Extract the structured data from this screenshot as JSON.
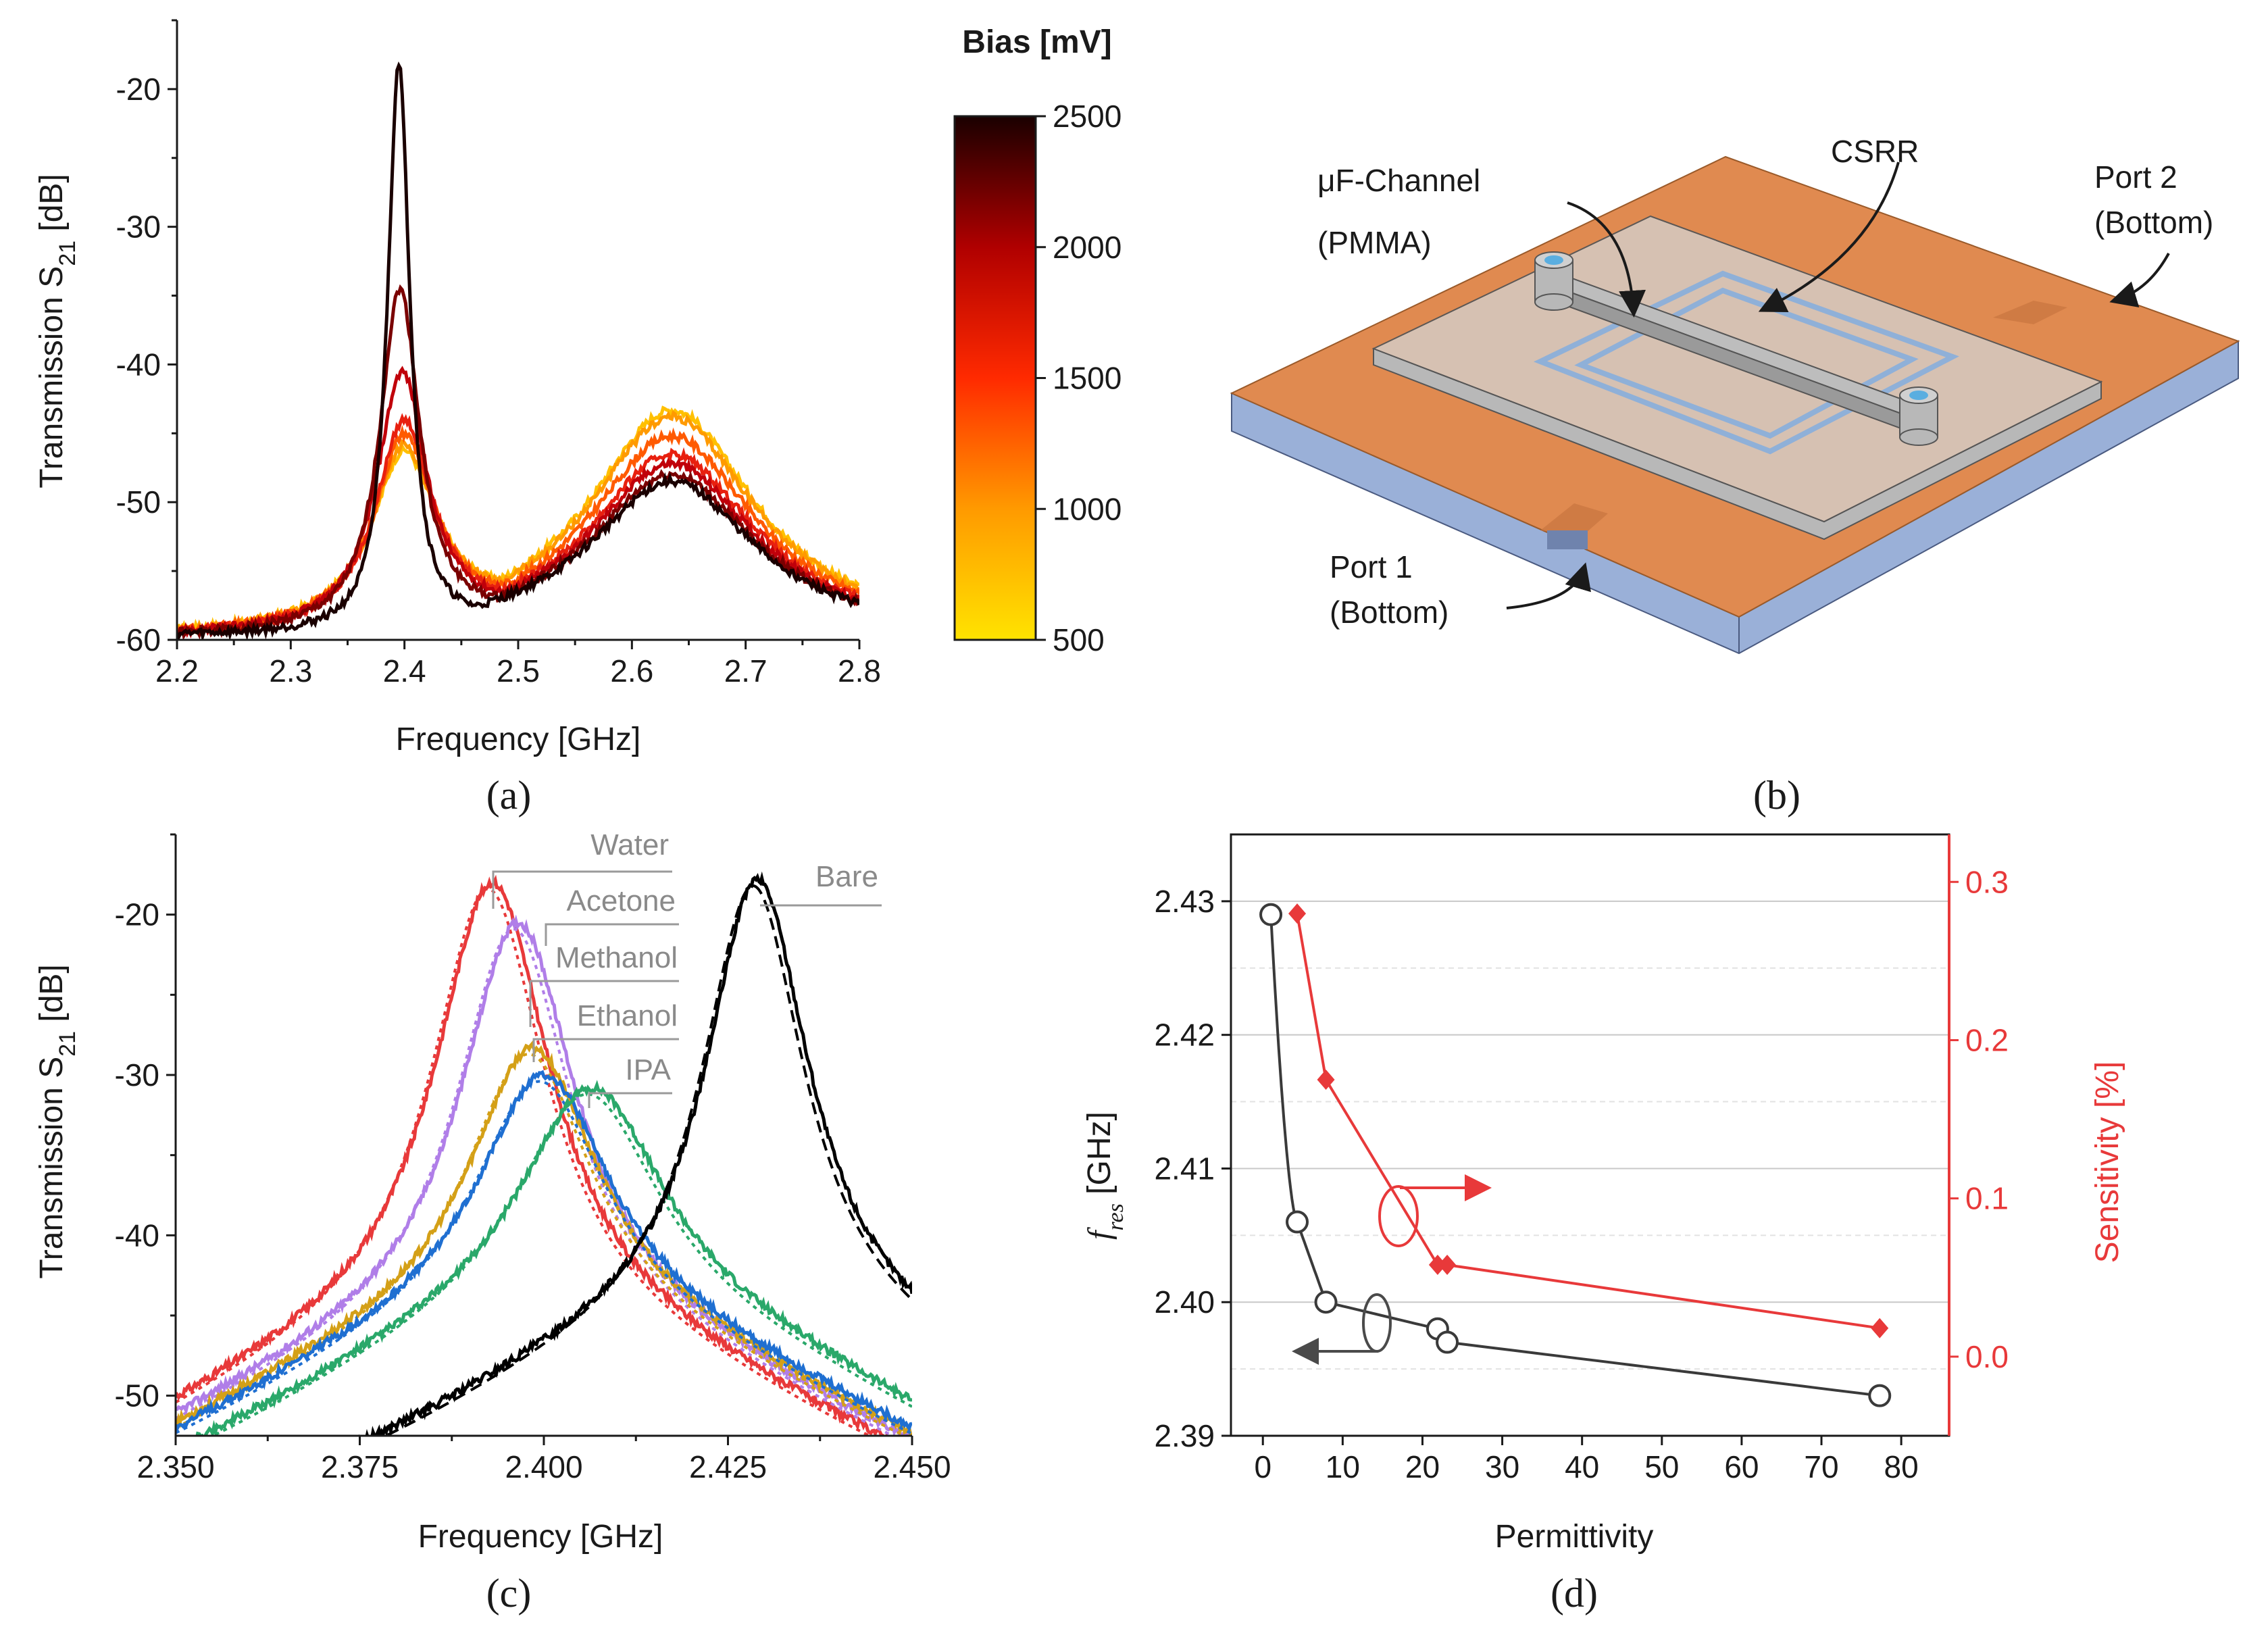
{
  "colors": {
    "axis": "#1a1a1a",
    "red": "#e8393a",
    "water": "#e8393a",
    "acetone": "#b07ee8",
    "methanol": "#b07ee8",
    "ethanol": "#d4a017",
    "ipa": "#1f6fd1",
    "ethanol_b": "#2aa86a",
    "bare": "#000000",
    "grid": "#cccccc",
    "copper": "#e08a50",
    "substrate": "#9ab0d8",
    "glass": "#d6c4b8"
  },
  "panel_labels": {
    "a": "(a)",
    "b": "(b)",
    "c": "(c)",
    "d": "(d)"
  },
  "panel_b": {
    "channel_label_1": "μF-Channel",
    "channel_label_2": "(PMMA)",
    "csrr_label": "CSRR",
    "port2_line1": "Port 2",
    "port2_line2": "(Bottom)",
    "port1_line1": "Port 1",
    "port1_line2": "(Bottom)"
  },
  "chart_data": [
    {
      "id": "a",
      "type": "line",
      "title": "",
      "xlabel": "Frequency [GHz]",
      "ylabel_main": "Transmission S",
      "ylabel_sub": "21",
      "ylabel_unit": " [dB]",
      "xlim": [
        2.2,
        2.8
      ],
      "ylim": [
        -60,
        -15
      ],
      "xticks": [
        2.2,
        2.3,
        2.4,
        2.5,
        2.6,
        2.7,
        2.8
      ],
      "xtick_labels": [
        "2.2",
        "2.3",
        "2.4",
        "2.5",
        "2.6",
        "2.7",
        "2.8"
      ],
      "yticks": [
        -60,
        -50,
        -40,
        -30,
        -20
      ],
      "ytick_labels": [
        "-60",
        "-50",
        "-40",
        "-30",
        "-20"
      ],
      "colorbar": {
        "title": "Bias [mV]",
        "range": [
          500,
          2500
        ],
        "ticks": [
          500,
          1000,
          1500,
          2000,
          2500
        ],
        "tick_labels": [
          "500",
          "1000",
          "1500",
          "2000",
          "2500"
        ]
      },
      "series": [
        {
          "name": "2500 mV",
          "bias": 2500,
          "peak1": -18.0,
          "f1": 2.395,
          "w1": 0.012,
          "peak2": -48.5,
          "color": "#1a0000"
        },
        {
          "name": "2100 mV",
          "bias": 2100,
          "peak1": -34.5,
          "f1": 2.396,
          "w1": 0.022,
          "peak2": -48.0,
          "color": "#7a0000"
        },
        {
          "name": "1800 mV",
          "bias": 1800,
          "peak1": -40.5,
          "f1": 2.398,
          "w1": 0.028,
          "peak2": -47.2,
          "color": "#c0000a"
        },
        {
          "name": "1500 mV",
          "bias": 1500,
          "peak1": -44.0,
          "f1": 2.4,
          "w1": 0.032,
          "peak2": -46.5,
          "color": "#e8200f"
        },
        {
          "name": "1200 mV",
          "bias": 1200,
          "peak1": -45.0,
          "f1": 2.4,
          "w1": 0.034,
          "peak2": -45.2,
          "color": "#ff5a00"
        },
        {
          "name": "900 mV",
          "bias": 900,
          "peak1": -45.8,
          "f1": 2.4,
          "w1": 0.035,
          "peak2": -43.8,
          "color": "#ff9a00"
        },
        {
          "name": "500 mV",
          "bias": 500,
          "peak1": -46.2,
          "f1": 2.4,
          "w1": 0.036,
          "peak2": -43.3,
          "color": "#ffc000"
        }
      ]
    },
    {
      "id": "c",
      "type": "line",
      "title": "",
      "xlabel": "Frequency [GHz]",
      "ylabel_main": "Transmission S",
      "ylabel_sub": "21",
      "ylabel_unit": " [dB]",
      "xlim": [
        2.35,
        2.45
      ],
      "ylim": [
        -52.5,
        -15
      ],
      "xticks": [
        2.35,
        2.375,
        2.4,
        2.425,
        2.45
      ],
      "xtick_labels": [
        "2.350",
        "2.375",
        "2.400",
        "2.425",
        "2.450"
      ],
      "yticks": [
        -50,
        -40,
        -30,
        -20
      ],
      "ytick_labels": [
        "-50",
        "-40",
        "-30",
        "-20"
      ],
      "series": [
        {
          "name": "Water",
          "f0": 2.393,
          "peak": -18.0,
          "w": 0.0095,
          "color": "#e8393a"
        },
        {
          "name": "Acetone",
          "f0": 2.3965,
          "peak": -20.5,
          "w": 0.0095,
          "color": "#b07ee8"
        },
        {
          "name": "Methanol",
          "f0": 2.3985,
          "peak": -28.3,
          "w": 0.0105,
          "color": "#d4a017"
        },
        {
          "name": "Ethanol",
          "f0": 2.4,
          "peak": -30.0,
          "w": 0.011,
          "color": "#1f6fd1"
        },
        {
          "name": "IPA",
          "f0": 2.4065,
          "peak": -30.8,
          "w": 0.012,
          "color": "#2aa86a"
        },
        {
          "name": "Bare",
          "f0": 2.429,
          "peak": -17.8,
          "w": 0.0085,
          "color": "#000000"
        }
      ],
      "label_order": [
        "Water",
        "Acetone",
        "Methanol",
        "Ethanol",
        "IPA",
        "Bare"
      ]
    },
    {
      "id": "d",
      "type": "scatter",
      "title": "",
      "xlabel": "Permittivity",
      "ylabel_left_main": "f",
      "ylabel_left_sub": "res",
      "ylabel_left_unit": " [GHz]",
      "ylabel_right": "Sensitivity [%]",
      "xlim": [
        -4,
        86
      ],
      "ylim_left": [
        2.39,
        2.435
      ],
      "ylim_right": [
        -0.05,
        0.33
      ],
      "xticks": [
        0,
        10,
        20,
        30,
        40,
        50,
        60,
        70,
        80
      ],
      "xtick_labels": [
        "0",
        "10",
        "20",
        "30",
        "40",
        "50",
        "60",
        "70",
        "80"
      ],
      "yticks_left": [
        2.39,
        2.4,
        2.41,
        2.42,
        2.43
      ],
      "ytick_labels_left": [
        "2.39",
        "2.40",
        "2.41",
        "2.42",
        "2.43"
      ],
      "yticks_right": [
        0.0,
        0.1,
        0.2,
        0.3
      ],
      "ytick_labels_right": [
        "0.0",
        "0.1",
        "0.2",
        "0.3"
      ],
      "series": [
        {
          "name": "f_res",
          "axis": "left",
          "marker": "circle",
          "color": "#3a3a3a",
          "x": [
            1.0,
            4.3,
            7.9,
            21.9,
            23.1,
            77.3
          ],
          "y": [
            2.429,
            2.406,
            2.4,
            2.398,
            2.397,
            2.393
          ]
        },
        {
          "name": "Sensitivity",
          "axis": "right",
          "marker": "diamond",
          "color": "#e8393a",
          "x": [
            4.3,
            7.9,
            21.9,
            23.1,
            77.3
          ],
          "y": [
            0.28,
            0.175,
            0.058,
            0.058,
            0.018
          ]
        }
      ]
    }
  ]
}
